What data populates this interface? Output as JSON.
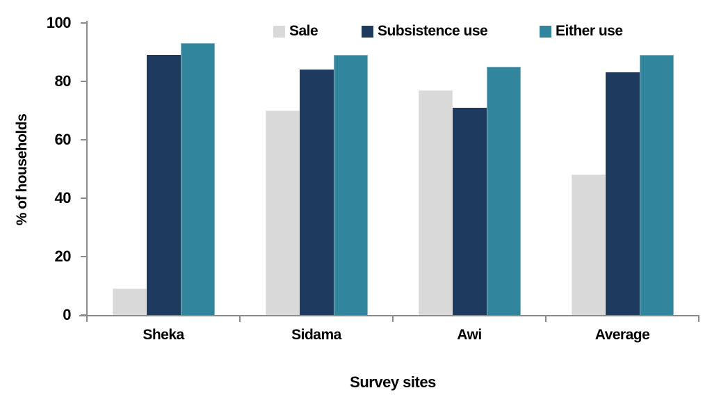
{
  "chart_data": {
    "type": "bar",
    "title": "",
    "xlabel": "Survey sites",
    "ylabel": "% of households",
    "categories": [
      "Sheka",
      "Sidama",
      "Awi",
      "Average"
    ],
    "series": [
      {
        "name": "Sale",
        "color": "#D9D9D9",
        "border_color": "#E3E3E3",
        "values": [
          9,
          70,
          77,
          48
        ]
      },
      {
        "name": "Subsistence use",
        "color": "#1E3A5F",
        "border_color": "#1E3A5F",
        "values": [
          89,
          84,
          71,
          83
        ]
      },
      {
        "name": "Either use",
        "color": "#31859C",
        "border_color": "#85B3C3",
        "values": [
          93,
          89,
          85,
          89
        ]
      }
    ],
    "ylim": [
      0,
      100
    ],
    "ytick_step": 20,
    "ytick_labels": [
      "0",
      "20",
      "40",
      "60",
      "80",
      "100"
    ],
    "grid": false,
    "legend_position": "top",
    "axis_color": "#8C8C8C",
    "text_color": "#000000",
    "background_color": "#FFFFFF"
  }
}
